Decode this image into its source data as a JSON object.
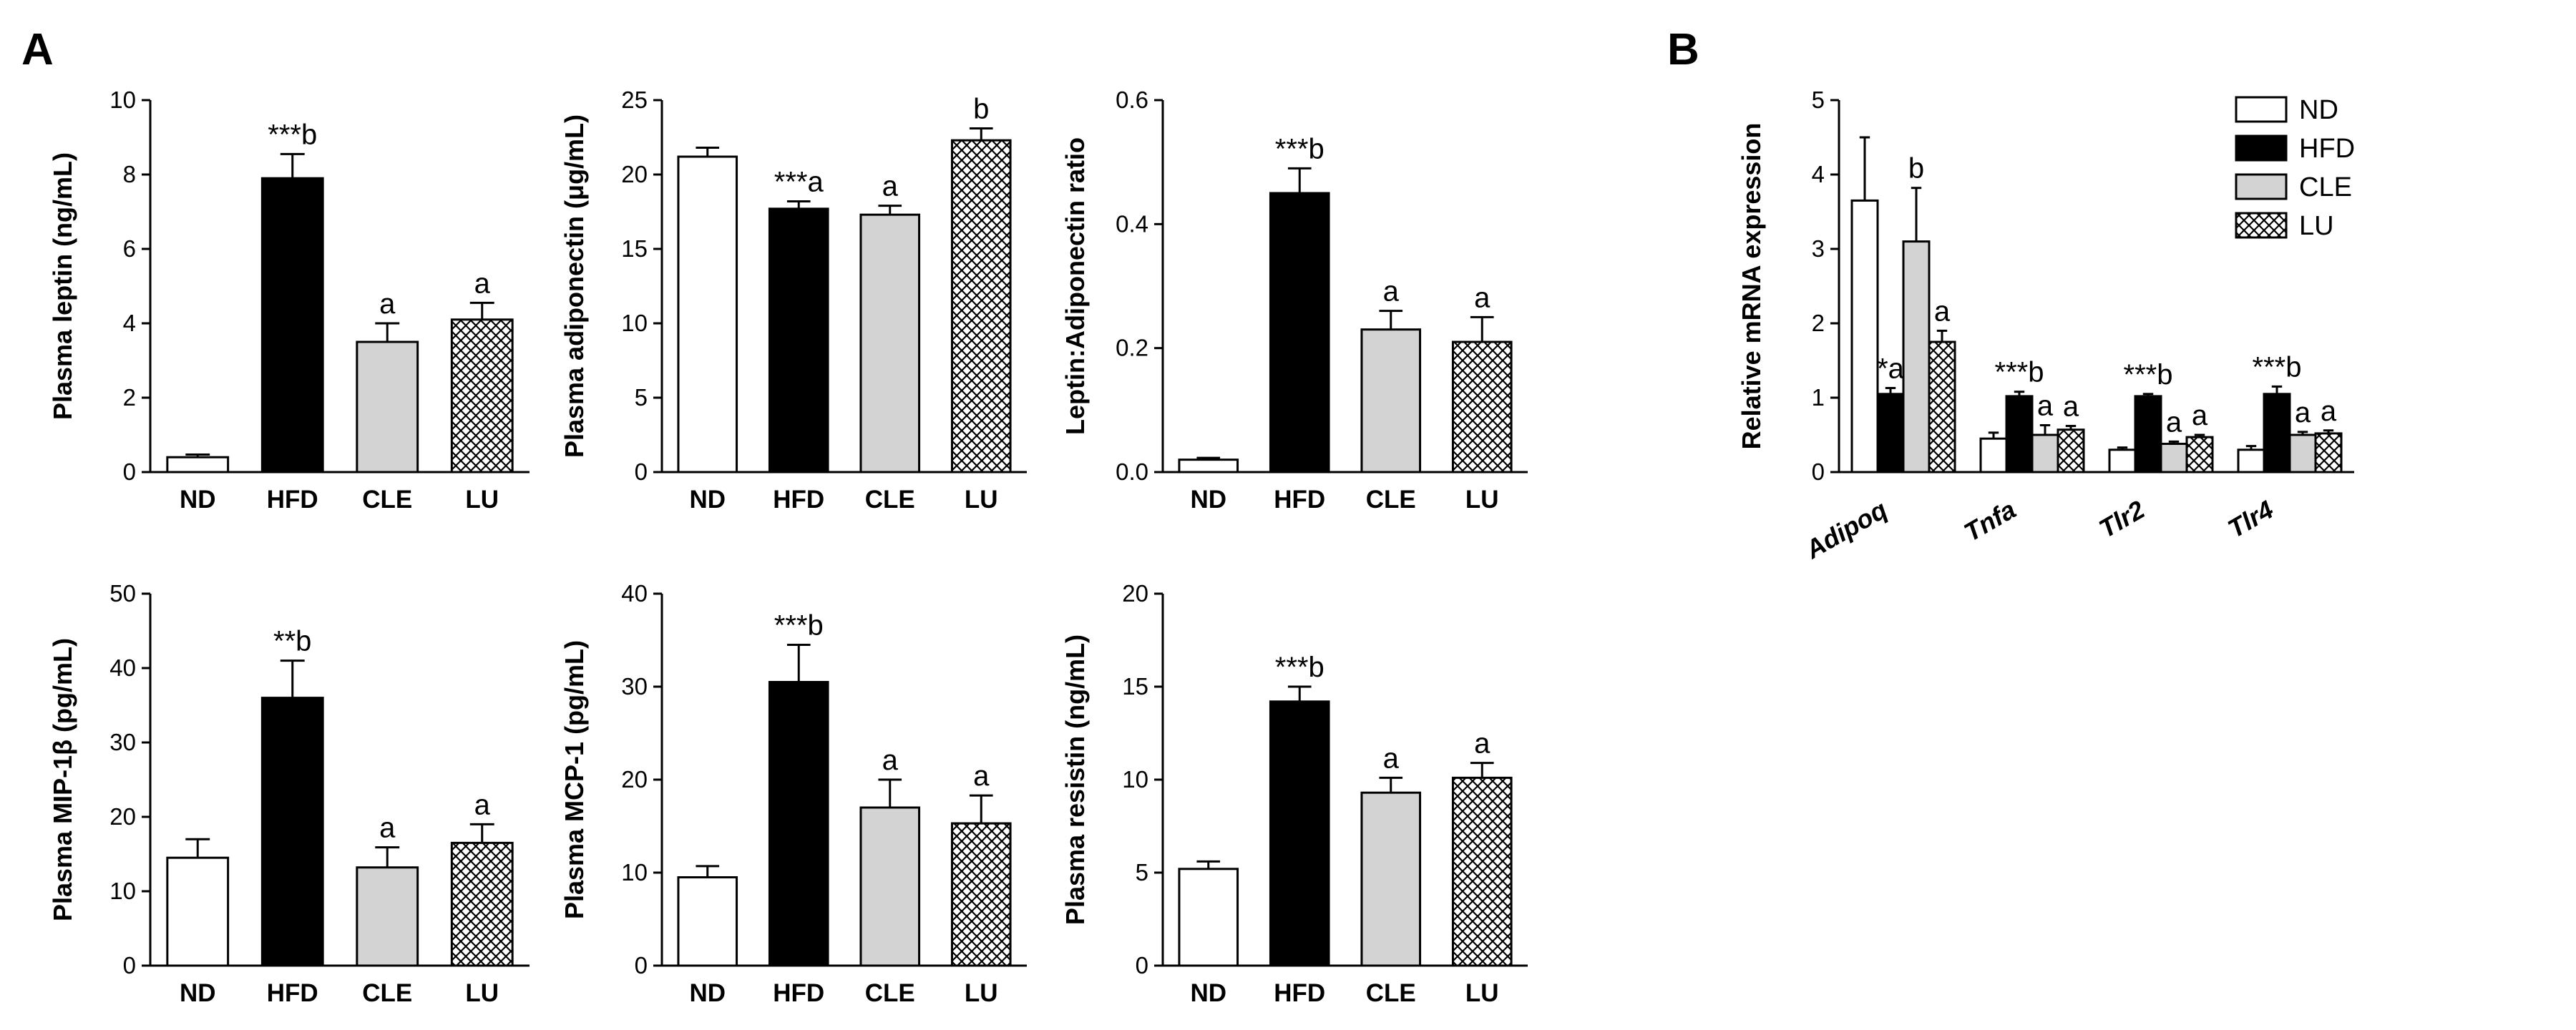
{
  "panel_labels": [
    "A",
    "B"
  ],
  "colors": {
    "ND": "#ffffff",
    "HFD": "#000000",
    "CLE": "#d3d3d3",
    "LU": "crosshatch"
  },
  "chart_data": [
    {
      "id": "leptin",
      "type": "bar",
      "panel": "A",
      "ylabel": "Plasma leptin (ng/mL)",
      "ylim": [
        0,
        10
      ],
      "yticks": [
        "0",
        "2",
        "4",
        "6",
        "8",
        "10"
      ],
      "categories": [
        "ND",
        "HFD",
        "CLE",
        "LU"
      ],
      "values": [
        0.4,
        7.9,
        3.5,
        4.1
      ],
      "errors": [
        0.07,
        0.65,
        0.5,
        0.45
      ],
      "annotations": [
        "",
        "***b",
        "a",
        "a"
      ]
    },
    {
      "id": "adiponectin",
      "type": "bar",
      "panel": "A",
      "ylabel": "Plasma adiponectin (μg/mL)",
      "ylim": [
        0,
        25
      ],
      "yticks": [
        "0",
        "5",
        "10",
        "15",
        "20",
        "25"
      ],
      "categories": [
        "ND",
        "HFD",
        "CLE",
        "LU"
      ],
      "values": [
        21.2,
        17.7,
        17.3,
        22.3
      ],
      "errors": [
        0.6,
        0.5,
        0.6,
        0.8
      ],
      "annotations": [
        "",
        "***a",
        "a",
        "b"
      ]
    },
    {
      "id": "ratio",
      "type": "bar",
      "panel": "A",
      "ylabel": "Leptin:Adiponectin ratio",
      "ylim": [
        0,
        0.6
      ],
      "yticks": [
        "0.0",
        "0.2",
        "0.4",
        "0.6"
      ],
      "categories": [
        "ND",
        "HFD",
        "CLE",
        "LU"
      ],
      "values": [
        0.02,
        0.45,
        0.23,
        0.21
      ],
      "errors": [
        0.003,
        0.04,
        0.03,
        0.04
      ],
      "annotations": [
        "",
        "***b",
        "a",
        "a"
      ]
    },
    {
      "id": "mip1b",
      "type": "bar",
      "panel": "A",
      "ylabel": "Plasma MIP-1β (pg/mL)",
      "ylim": [
        0,
        50
      ],
      "yticks": [
        "0",
        "10",
        "20",
        "30",
        "40",
        "50"
      ],
      "categories": [
        "ND",
        "HFD",
        "CLE",
        "LU"
      ],
      "values": [
        14.5,
        36,
        13.2,
        16.5
      ],
      "errors": [
        2.5,
        5,
        2.7,
        2.5
      ],
      "annotations": [
        "",
        "**b",
        "a",
        "a"
      ]
    },
    {
      "id": "mcp1",
      "type": "bar",
      "panel": "A",
      "ylabel": "Plasma MCP-1 (pg/mL)",
      "ylim": [
        0,
        40
      ],
      "yticks": [
        "0",
        "10",
        "20",
        "30",
        "40"
      ],
      "categories": [
        "ND",
        "HFD",
        "CLE",
        "LU"
      ],
      "values": [
        9.5,
        30.5,
        17,
        15.3
      ],
      "errors": [
        1.2,
        4,
        3,
        3
      ],
      "annotations": [
        "",
        "***b",
        "a",
        "a"
      ]
    },
    {
      "id": "resistin",
      "type": "bar",
      "panel": "A",
      "ylabel": "Plasma resistin (ng/mL)",
      "ylim": [
        0,
        20
      ],
      "yticks": [
        "0",
        "5",
        "10",
        "15",
        "20"
      ],
      "categories": [
        "ND",
        "HFD",
        "CLE",
        "LU"
      ],
      "values": [
        5.2,
        14.2,
        9.3,
        10.1
      ],
      "errors": [
        0.4,
        0.8,
        0.8,
        0.8
      ],
      "annotations": [
        "",
        "***b",
        "a",
        "a"
      ]
    },
    {
      "id": "mrna",
      "type": "bar",
      "panel": "B",
      "ylabel": "Relative mRNA expression",
      "ylim": [
        0,
        5
      ],
      "yticks": [
        "0",
        "1",
        "2",
        "3",
        "4",
        "5"
      ],
      "categories": [
        "Adipoq",
        "Tnfa",
        "Tlr2",
        "Tlr4"
      ],
      "series": [
        {
          "name": "ND",
          "values": [
            3.65,
            0.45,
            0.3,
            0.3
          ],
          "errors": [
            0.85,
            0.08,
            0.03,
            0.05
          ],
          "annotations": [
            "",
            "",
            "",
            ""
          ]
        },
        {
          "name": "HFD",
          "values": [
            1.05,
            1.02,
            1.02,
            1.05
          ],
          "errors": [
            0.08,
            0.06,
            0.03,
            0.1
          ],
          "annotations": [
            "*a",
            "***b",
            "***b",
            "***b"
          ]
        },
        {
          "name": "CLE",
          "values": [
            3.1,
            0.5,
            0.38,
            0.5
          ],
          "errors": [
            0.72,
            0.13,
            0.03,
            0.04
          ],
          "annotations": [
            "b",
            "a",
            "a",
            "a"
          ]
        },
        {
          "name": "LU",
          "values": [
            1.75,
            0.57,
            0.47,
            0.52
          ],
          "errors": [
            0.15,
            0.05,
            0.03,
            0.04
          ],
          "annotations": [
            "a",
            "a",
            "a",
            "a"
          ]
        }
      ],
      "legend": [
        "ND",
        "HFD",
        "CLE",
        "LU"
      ],
      "legend_position": "top-right"
    }
  ]
}
